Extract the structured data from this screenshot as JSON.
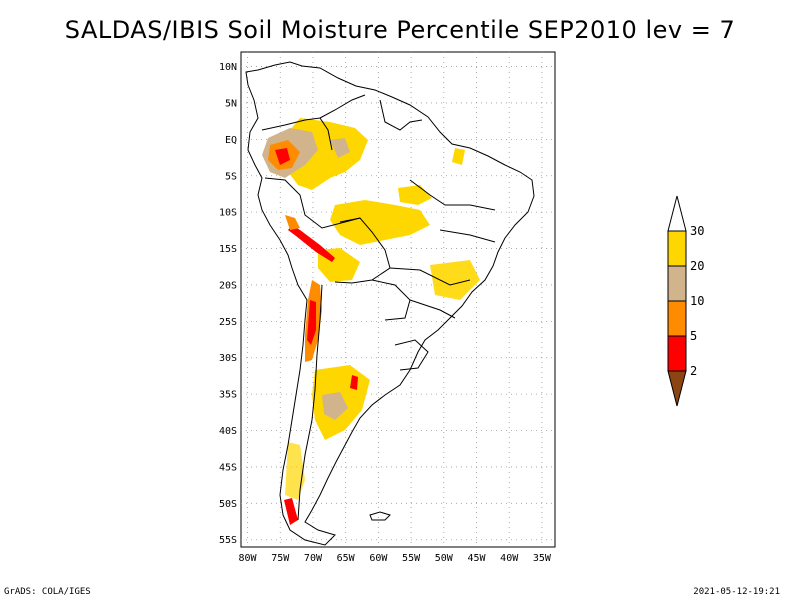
{
  "title": "SALDAS/IBIS Soil Moisture Percentile SEP2010 lev = 7",
  "map": {
    "lon_labels": [
      "80W",
      "75W",
      "70W",
      "65W",
      "60W",
      "55W",
      "50W",
      "45W",
      "40W",
      "35W"
    ],
    "lat_labels": [
      "10N",
      "5N",
      "EQ",
      "5S",
      "10S",
      "15S",
      "20S",
      "25S",
      "30S",
      "35S",
      "40S",
      "45S",
      "50S",
      "55S"
    ],
    "extent": {
      "lon": [
        -81,
        -33
      ],
      "lat": [
        -56,
        12
      ]
    },
    "grid": true
  },
  "colorbar": {
    "placement": "right",
    "labels": [
      "30",
      "20",
      "10",
      "5",
      "2"
    ],
    "colors": {
      "above": "#ffffff",
      "c30": "#ffd700",
      "c20": "#d2b48c",
      "c10": "#ff8c00",
      "c5": "#ff0000",
      "below": "#8b4513"
    }
  },
  "footer": {
    "left": "GrADS: COLA/IGES",
    "right": "2021-05-12-19:21"
  }
}
